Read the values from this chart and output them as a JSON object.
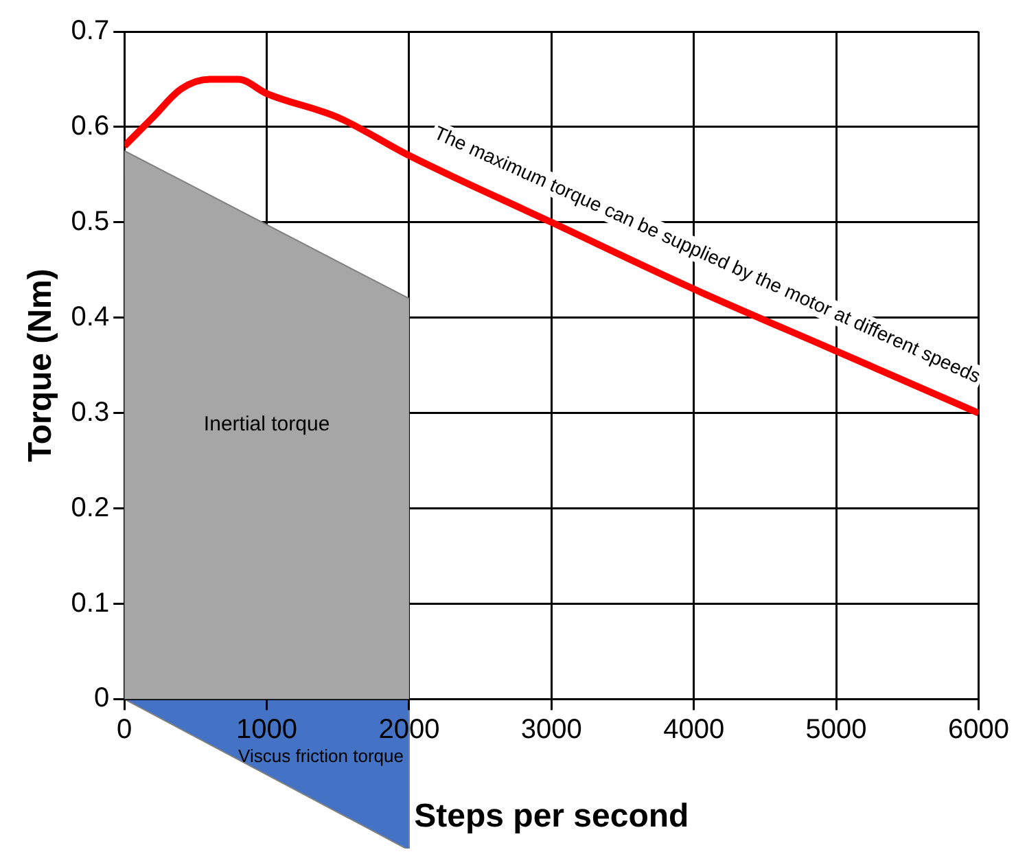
{
  "chart_data": {
    "type": "line",
    "xlabel": "Steps per second",
    "ylabel": "Torque (Nm)",
    "xlim": [
      0,
      6000
    ],
    "xticks": [
      0,
      1000,
      2000,
      3000,
      4000,
      5000,
      6000
    ],
    "ylim": [
      0,
      0.7
    ],
    "yticks": [
      0,
      0.1,
      0.2,
      0.3,
      0.4,
      0.5,
      0.6,
      0.7
    ],
    "grid": true,
    "legend": false,
    "series": [
      {
        "type": "area",
        "name": "Inertial torque",
        "color": "#a6a6a6",
        "x": [
          0,
          2000
        ],
        "values": [
          0.575,
          0.42
        ]
      },
      {
        "color": "#ff0000",
        "x": [
          0,
          200,
          400,
          600,
          800,
          1000,
          1500,
          2000,
          3000,
          4000,
          5000,
          6000
        ],
        "values": [
          0.58,
          0.61,
          0.64,
          0.65,
          0.65,
          0.635,
          0.61,
          0.57,
          0.5,
          0.43,
          0.365,
          0.3
        ]
      }
    ],
    "annotations": [
      "The maximum torque can be supplied by the motor at different speeds",
      "Viscus friction torque"
    ]
  }
}
